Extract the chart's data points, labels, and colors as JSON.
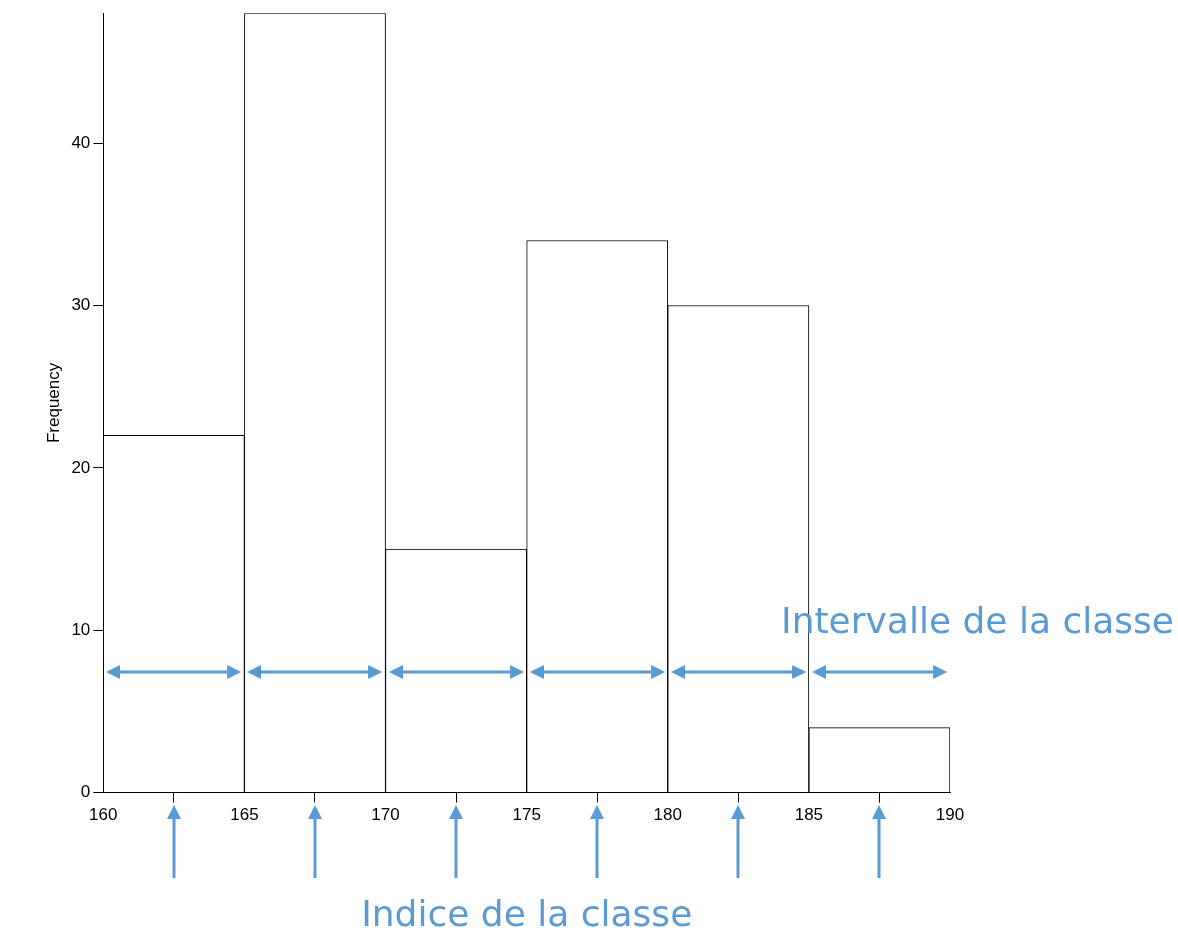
{
  "chart_data": {
    "type": "histogram",
    "ylabel": "Frequency",
    "bins": [
      160,
      165,
      170,
      175,
      180,
      185,
      190
    ],
    "values": [
      22,
      48,
      15,
      34,
      30,
      4
    ],
    "color": "#ffffff",
    "xlim": [
      160,
      190
    ],
    "xticks": [
      160,
      165,
      170,
      175,
      180,
      185,
      190
    ],
    "ylim": [
      0,
      48
    ],
    "yticks": [
      0,
      10,
      20,
      30,
      40
    ],
    "grid": false,
    "legend": false,
    "annotations": [
      "Intervalle de la classe",
      "Indice de la classe"
    ]
  }
}
